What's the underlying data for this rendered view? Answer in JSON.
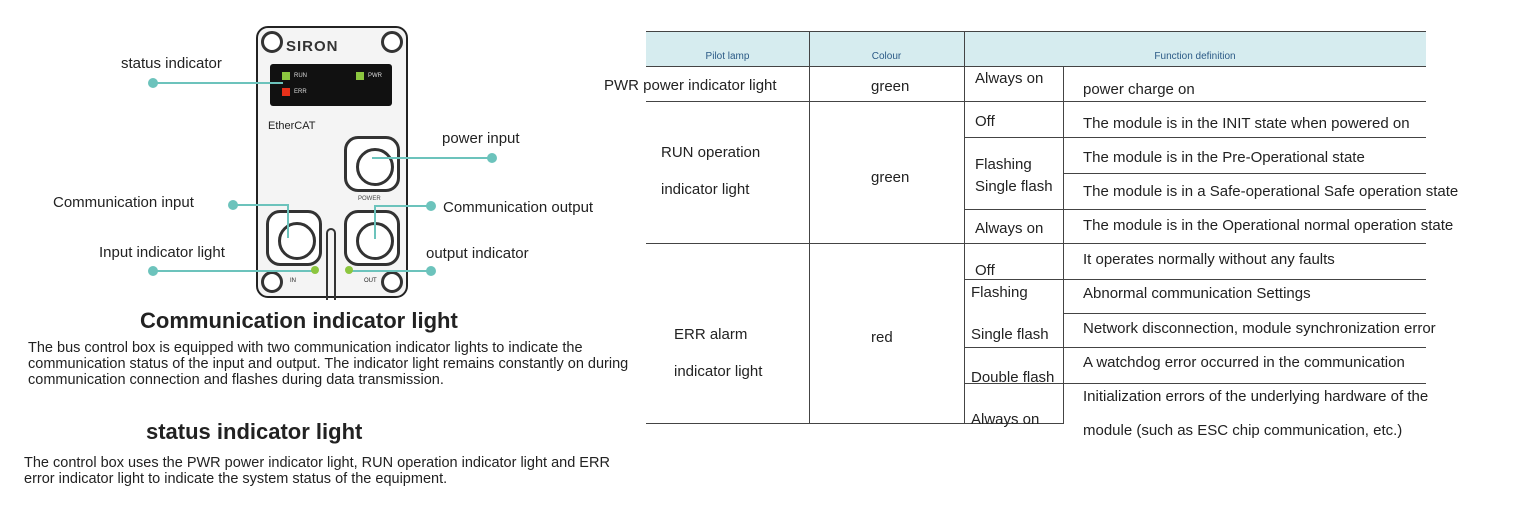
{
  "diagram": {
    "device_brand": "SIRON",
    "ethercat_logo": "EtherCAT",
    "led_labels": {
      "run": "RUN",
      "pwr": "PWR",
      "err": "ERR"
    },
    "port_labels": {
      "power": "POWER",
      "in": "IN",
      "out": "OUT"
    },
    "callouts": {
      "status": "status indicator",
      "power": "power input",
      "comm_in": "Communication input",
      "comm_out": "Communication output",
      "input_led": "Input indicator light",
      "output_led": "output indicator"
    },
    "colors": {
      "run": "#8cc63f",
      "pwr": "#8cc63f",
      "err": "#e8311a",
      "callout": "#6cc3bc"
    }
  },
  "sections": [
    {
      "title": "Communication indicator light",
      "body": "The bus control box is equipped with two communication indicator lights to indicate the communication status of the input and output. The indicator light remains constantly on during communication connection and flashes during data transmission."
    },
    {
      "title": "status indicator light",
      "body": "The control box uses the PWR power indicator light, RUN operation indicator light and ERR error indicator light to indicate the system status of the equipment."
    }
  ],
  "table": {
    "headers": [
      "Pilot lamp",
      "Colour",
      "Function definition"
    ],
    "groups": [
      {
        "lamp": "PWR power indicator light",
        "colour": "green",
        "rows": [
          [
            "Always on",
            "power charge on"
          ]
        ]
      },
      {
        "lamp_lines": [
          "RUN operation",
          "indicator light"
        ],
        "colour": "green",
        "rows": [
          [
            "Off",
            "The module is in the INIT state when powered on"
          ],
          [
            "Flashing",
            "The module is in the Pre-Operational state"
          ],
          [
            "Single flash",
            "The module is in a Safe-operational Safe operation state"
          ],
          [
            "Always on",
            "The module is in the Operational normal operation state"
          ]
        ]
      },
      {
        "lamp_lines": [
          "ERR alarm",
          "indicator light"
        ],
        "colour": "red",
        "rows": [
          [
            "Off",
            "It operates normally without any faults"
          ],
          [
            "Flashing",
            "Abnormal communication Settings"
          ],
          [
            "Single flash",
            "Network disconnection, module synchronization error"
          ],
          [
            "Double flash",
            "A watchdog error occurred in the communication"
          ],
          [
            "Always on",
            "Initialization errors of the underlying hardware of the",
            "module (such as ESC chip communication, etc.)"
          ]
        ]
      }
    ]
  }
}
